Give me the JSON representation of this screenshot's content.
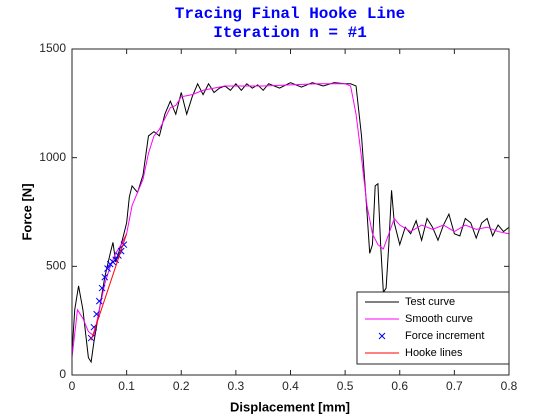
{
  "chart_data": {
    "type": "line",
    "title": [
      "Tracing Final Hooke Line",
      "Iteration n = #1"
    ],
    "title_color": "#0000ff",
    "xlabel": "Displacement [mm]",
    "ylabel": "Force [N]",
    "xlim": [
      0,
      0.8
    ],
    "ylim": [
      0,
      1500
    ],
    "xticks": [
      0,
      0.1,
      0.2,
      0.3,
      0.4,
      0.5,
      0.6,
      0.7,
      0.8
    ],
    "yticks": [
      0,
      500,
      1000,
      1500
    ],
    "grid": false,
    "legend": "lower right",
    "series": [
      {
        "name": "Test curve",
        "color": "#000000",
        "style": "line",
        "x": [
          0,
          0.005,
          0.012,
          0.02,
          0.03,
          0.035,
          0.04,
          0.05,
          0.06,
          0.07,
          0.075,
          0.08,
          0.09,
          0.1,
          0.105,
          0.11,
          0.12,
          0.13,
          0.14,
          0.15,
          0.16,
          0.17,
          0.18,
          0.19,
          0.2,
          0.21,
          0.22,
          0.23,
          0.24,
          0.25,
          0.26,
          0.27,
          0.28,
          0.29,
          0.3,
          0.31,
          0.32,
          0.33,
          0.34,
          0.35,
          0.36,
          0.38,
          0.4,
          0.42,
          0.44,
          0.46,
          0.48,
          0.5,
          0.51,
          0.52,
          0.53,
          0.54,
          0.545,
          0.55,
          0.555,
          0.56,
          0.565,
          0.57,
          0.575,
          0.58,
          0.585,
          0.59,
          0.6,
          0.61,
          0.62,
          0.63,
          0.64,
          0.65,
          0.66,
          0.67,
          0.68,
          0.69,
          0.7,
          0.71,
          0.72,
          0.73,
          0.74,
          0.75,
          0.76,
          0.77,
          0.78,
          0.79,
          0.8
        ],
        "values": [
          100,
          300,
          410,
          300,
          80,
          60,
          150,
          300,
          450,
          560,
          610,
          520,
          600,
          700,
          820,
          870,
          840,
          920,
          1100,
          1120,
          1100,
          1200,
          1260,
          1200,
          1300,
          1200,
          1280,
          1340,
          1290,
          1340,
          1300,
          1320,
          1330,
          1310,
          1340,
          1310,
          1340,
          1320,
          1335,
          1310,
          1340,
          1320,
          1345,
          1325,
          1345,
          1330,
          1345,
          1340,
          1340,
          1330,
          1100,
          750,
          560,
          600,
          870,
          880,
          600,
          380,
          400,
          600,
          850,
          700,
          600,
          680,
          650,
          710,
          620,
          720,
          680,
          620,
          690,
          740,
          650,
          640,
          720,
          700,
          630,
          700,
          720,
          640,
          690,
          660,
          680
        ]
      },
      {
        "name": "Smooth curve",
        "color": "#ff00ff",
        "style": "line",
        "x": [
          0,
          0.01,
          0.02,
          0.03,
          0.04,
          0.05,
          0.06,
          0.07,
          0.08,
          0.09,
          0.1,
          0.11,
          0.12,
          0.13,
          0.14,
          0.15,
          0.16,
          0.17,
          0.18,
          0.19,
          0.2,
          0.22,
          0.24,
          0.26,
          0.28,
          0.3,
          0.35,
          0.4,
          0.45,
          0.5,
          0.51,
          0.52,
          0.53,
          0.54,
          0.55,
          0.56,
          0.57,
          0.58,
          0.59,
          0.6,
          0.62,
          0.64,
          0.66,
          0.68,
          0.7,
          0.72,
          0.74,
          0.76,
          0.78,
          0.8
        ],
        "values": [
          80,
          300,
          260,
          200,
          180,
          300,
          420,
          500,
          560,
          600,
          650,
          780,
          840,
          900,
          1020,
          1100,
          1130,
          1180,
          1230,
          1240,
          1280,
          1290,
          1310,
          1320,
          1330,
          1330,
          1330,
          1335,
          1340,
          1340,
          1330,
          1200,
          1000,
          780,
          650,
          600,
          580,
          650,
          720,
          690,
          660,
          690,
          670,
          690,
          660,
          690,
          670,
          680,
          660,
          650
        ]
      },
      {
        "name": "Force increment",
        "color": "#0000ff",
        "style": "marker",
        "x": [
          0.035,
          0.04,
          0.045,
          0.05,
          0.055,
          0.06,
          0.065,
          0.07,
          0.075,
          0.08,
          0.085,
          0.09,
          0.095
        ],
        "values": [
          170,
          220,
          280,
          340,
          400,
          450,
          490,
          510,
          520,
          530,
          550,
          570,
          600
        ]
      },
      {
        "name": "Hooke lines",
        "color": "#ff0000",
        "style": "line",
        "x": [
          0.035,
          0.1
        ],
        "values": [
          160,
          650
        ]
      }
    ]
  }
}
